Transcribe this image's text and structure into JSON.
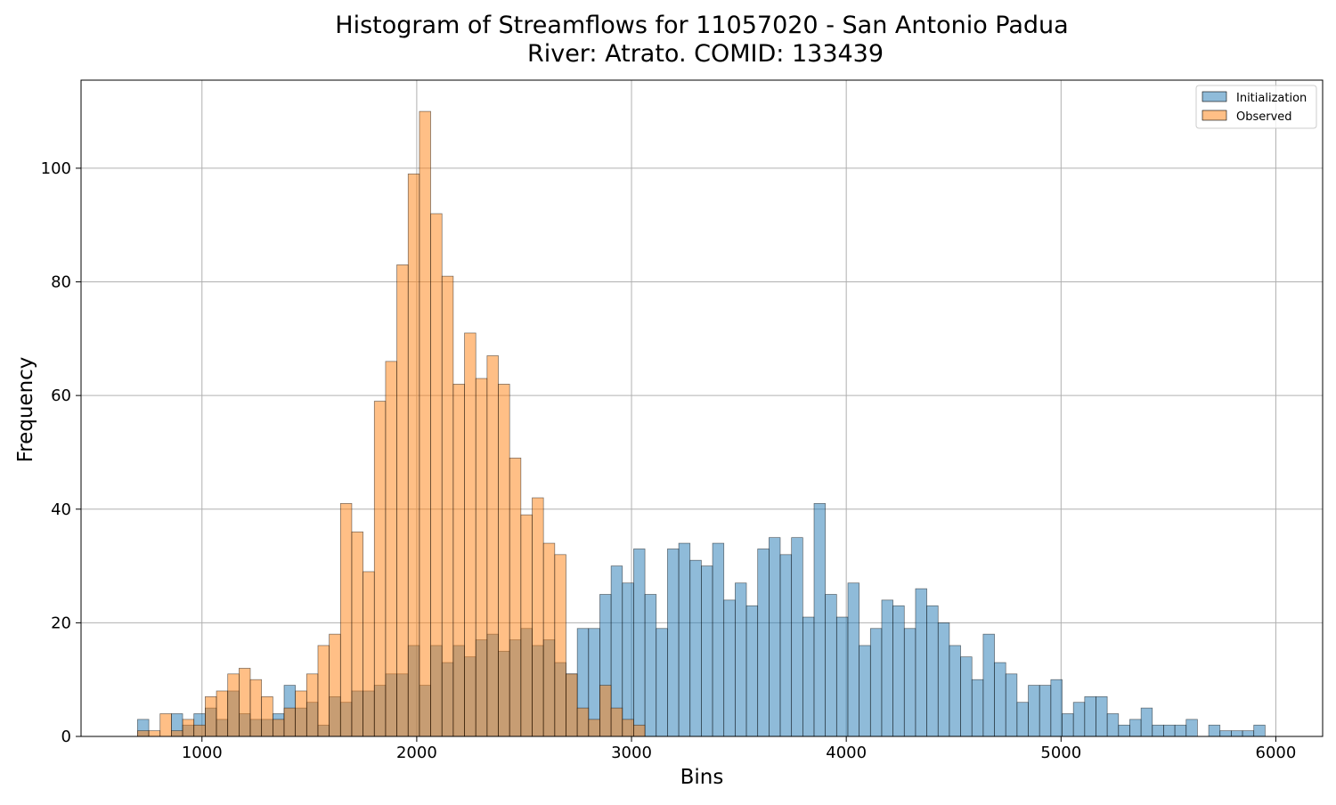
{
  "chart_data": {
    "type": "histogram",
    "title": "Histogram of Streamflows for 11057020 - San Antonio Padua",
    "subtitle": "River: Atrato. COMID: 133439",
    "xlabel": "Bins",
    "ylabel": "Frequency",
    "xlim": [
      437,
      6218
    ],
    "ylim": [
      0,
      115.5
    ],
    "xticks": [
      1000,
      2000,
      3000,
      4000,
      5000,
      6000
    ],
    "yticks": [
      0,
      20,
      40,
      60,
      80,
      100
    ],
    "grid": true,
    "legend_position": "top-right",
    "bin_start": 700,
    "bin_width": 52.5,
    "series": [
      {
        "name": "Initialization",
        "color": "#1f77b4",
        "values": [
          3,
          0,
          0,
          4,
          2,
          4,
          5,
          3,
          8,
          4,
          3,
          3,
          4,
          9,
          5,
          6,
          2,
          7,
          6,
          8,
          8,
          9,
          11,
          11,
          16,
          9,
          16,
          13,
          16,
          14,
          17,
          18,
          15,
          17,
          19,
          16,
          17,
          13,
          11,
          19,
          19,
          25,
          30,
          27,
          33,
          25,
          19,
          33,
          34,
          31,
          30,
          34,
          24,
          27,
          23,
          33,
          35,
          32,
          35,
          21,
          41,
          25,
          21,
          27,
          16,
          19,
          24,
          23,
          19,
          26,
          23,
          20,
          16,
          14,
          10,
          18,
          13,
          11,
          6,
          9,
          9,
          10,
          4,
          6,
          7,
          7,
          4,
          2,
          3,
          5,
          2,
          2,
          2,
          3,
          0,
          2,
          1,
          1,
          1,
          2
        ]
      },
      {
        "name": "Observed",
        "color": "#ff7f0e",
        "values": [
          1,
          1,
          4,
          1,
          3,
          2,
          7,
          8,
          11,
          12,
          10,
          7,
          3,
          5,
          8,
          11,
          16,
          18,
          41,
          36,
          29,
          59,
          66,
          83,
          99,
          110,
          92,
          81,
          62,
          71,
          63,
          67,
          62,
          49,
          39,
          42,
          34,
          32,
          11,
          5,
          3,
          9,
          5,
          3,
          2
        ]
      }
    ]
  }
}
